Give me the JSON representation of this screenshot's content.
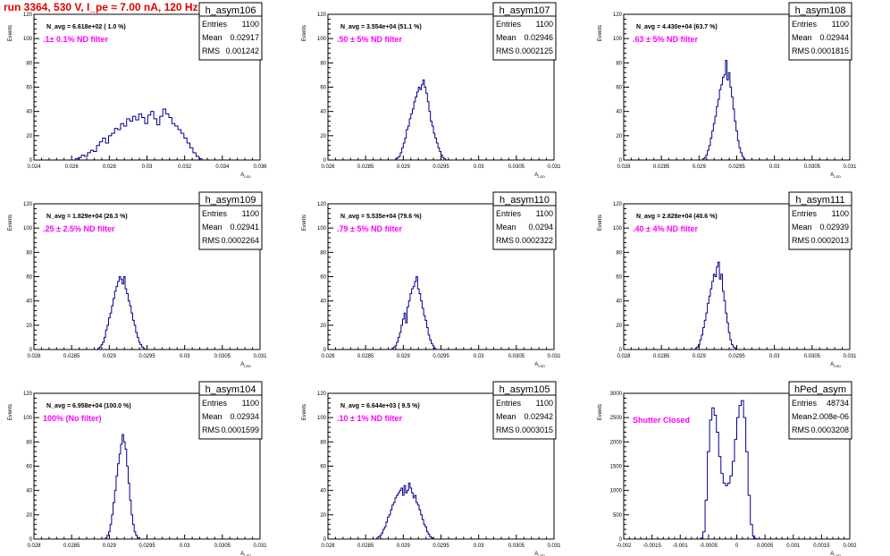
{
  "page": {
    "title": "run 3364,   530 V, I_pe ≈ 7.00 nA, 120 Hz"
  },
  "colors": {
    "title": "#e00000",
    "histogram": "#00008b",
    "filter_label": "#ff00ff"
  },
  "chart_data": [
    {
      "type": "histogram",
      "name": "h_asym106",
      "ylabel": "Events",
      "xlabel": "A_{LED}",
      "navg": "N_avg = 6.618e+02 ( 1.0 %)",
      "filter": ".1± 0.1% ND filter",
      "stats": {
        "Entries": "1100",
        "Mean": "0.02917",
        "RMS": "0.001242"
      },
      "xlim": [
        0.024,
        0.036
      ],
      "ylim": [
        0,
        120
      ],
      "xticks": [
        0.024,
        0.026,
        0.028,
        0.03,
        0.032,
        0.034,
        0.036
      ],
      "xtick_labels": [
        "0.024",
        "0.026",
        "0.028",
        "0.03",
        "0.032",
        "0.034",
        "0.036"
      ],
      "yticks": [
        0,
        20,
        40,
        60,
        80,
        100,
        120
      ],
      "bins": {
        "x0": 0.0262,
        "width": 0.00016,
        "counts": [
          1,
          2,
          4,
          3,
          6,
          8,
          7,
          12,
          15,
          18,
          14,
          20,
          22,
          26,
          25,
          30,
          28,
          34,
          32,
          36,
          33,
          38,
          35,
          30,
          37,
          40,
          34,
          29,
          36,
          42,
          38,
          35,
          30,
          28,
          25,
          22,
          18,
          14,
          10,
          6,
          3,
          1
        ]
      }
    },
    {
      "type": "histogram",
      "name": "h_asym107",
      "ylabel": "Events",
      "xlabel": "A_{LED}",
      "navg": "N_avg = 3.554e+04 (51.1 %)",
      "filter": ".50 ± 5% ND filter",
      "stats": {
        "Entries": "1100",
        "Mean": "0.02946",
        "RMS": "0.0002125"
      },
      "xlim": [
        0.028,
        0.031
      ],
      "ylim": [
        0,
        120
      ],
      "xticks": [
        0.028,
        0.0285,
        0.029,
        0.0295,
        0.03,
        0.0305,
        0.031
      ],
      "xtick_labels": [
        "0.028",
        "0.0285",
        "0.029",
        "0.0295",
        "0.03",
        "0.0305",
        "0.031"
      ],
      "yticks": [
        0,
        20,
        40,
        60,
        80,
        100,
        120
      ],
      "bins": {
        "x0": 0.0289,
        "width": 2e-05,
        "counts": [
          1,
          2,
          3,
          6,
          10,
          14,
          18,
          25,
          28,
          34,
          38,
          42,
          48,
          52,
          56,
          60,
          58,
          62,
          66,
          60,
          55,
          48,
          40,
          32,
          28,
          22,
          18,
          14,
          10,
          7,
          4,
          2,
          1
        ]
      }
    },
    {
      "type": "histogram",
      "name": "h_asym108",
      "ylabel": "Events",
      "xlabel": "A_{LED}",
      "navg": "N_avg = 4.430e+04 (63.7 %)",
      "filter": ".63 ± 5% ND filter",
      "stats": {
        "Entries": "1100",
        "Mean": "0.02944",
        "RMS": "0.0001815"
      },
      "xlim": [
        0.028,
        0.031
      ],
      "ylim": [
        0,
        120
      ],
      "xticks": [
        0.028,
        0.0285,
        0.029,
        0.0295,
        0.03,
        0.0305,
        0.031
      ],
      "xtick_labels": [
        "0.028",
        "0.0285",
        "0.029",
        "0.0295",
        "0.03",
        "0.0305",
        "0.031"
      ],
      "yticks": [
        0,
        20,
        40,
        60,
        80,
        100,
        120
      ],
      "bins": {
        "x0": 0.02905,
        "width": 2e-05,
        "counts": [
          1,
          2,
          4,
          8,
          12,
          18,
          24,
          30,
          36,
          44,
          50,
          58,
          62,
          68,
          70,
          82,
          66,
          72,
          60,
          52,
          42,
          32,
          24,
          16,
          10,
          6,
          3,
          1
        ]
      }
    },
    {
      "type": "histogram",
      "name": "h_asym109",
      "ylabel": "Events",
      "xlabel": "A_{LED}",
      "navg": "N_avg = 1.829e+04 (26.3 %)",
      "filter": ".25 ± 2.5% ND filter",
      "stats": {
        "Entries": "1100",
        "Mean": "0.02941",
        "RMS": "0.0002264"
      },
      "xlim": [
        0.028,
        0.031
      ],
      "ylim": [
        0,
        120
      ],
      "xticks": [
        0.028,
        0.0285,
        0.029,
        0.0295,
        0.03,
        0.0305,
        0.031
      ],
      "xtick_labels": [
        "0.028",
        "0.0285",
        "0.029",
        "0.0295",
        "0.03",
        "0.0305",
        "0.031"
      ],
      "yticks": [
        0,
        20,
        40,
        60,
        80,
        100,
        120
      ],
      "bins": {
        "x0": 0.02885,
        "width": 2e-05,
        "counts": [
          1,
          2,
          4,
          6,
          10,
          16,
          20,
          26,
          30,
          36,
          42,
          48,
          52,
          56,
          60,
          58,
          54,
          60,
          50,
          46,
          40,
          36,
          30,
          24,
          20,
          14,
          10,
          6,
          4,
          2,
          1
        ]
      }
    },
    {
      "type": "histogram",
      "name": "h_asym110",
      "ylabel": "Events",
      "xlabel": "A_{LED}",
      "navg": "N_avg = 5.535e+04 (79.6 %)",
      "filter": ".79 ± 5% ND filter",
      "stats": {
        "Entries": "1100",
        "Mean": "0.0294",
        "RMS": "0.0002322"
      },
      "xlim": [
        0.028,
        0.031
      ],
      "ylim": [
        0,
        120
      ],
      "xticks": [
        0.028,
        0.0285,
        0.029,
        0.0295,
        0.03,
        0.0305,
        0.031
      ],
      "xtick_labels": [
        "0.028",
        "0.0285",
        "0.029",
        "0.0295",
        "0.03",
        "0.0305",
        "0.031"
      ],
      "yticks": [
        0,
        20,
        40,
        60,
        80,
        100,
        120
      ],
      "bins": {
        "x0": 0.02885,
        "width": 2e-05,
        "counts": [
          1,
          2,
          3,
          6,
          10,
          14,
          20,
          25,
          30,
          22,
          35,
          40,
          46,
          50,
          52,
          56,
          60,
          50,
          46,
          40,
          34,
          28,
          24,
          18,
          12,
          8,
          5,
          3,
          1
        ]
      }
    },
    {
      "type": "histogram",
      "name": "h_asym111",
      "ylabel": "Events",
      "xlabel": "A_{LED}",
      "navg": "N_avg = 2.828e+04 (40.6 %)",
      "filter": ".40 ± 4% ND filter",
      "stats": {
        "Entries": "1100",
        "Mean": "0.02939",
        "RMS": "0.0002013"
      },
      "xlim": [
        0.028,
        0.031
      ],
      "ylim": [
        0,
        120
      ],
      "xticks": [
        0.028,
        0.0285,
        0.029,
        0.0295,
        0.03,
        0.0305,
        0.031
      ],
      "xtick_labels": [
        "0.028",
        "0.0285",
        "0.029",
        "0.0295",
        "0.03",
        "0.0305",
        "0.031"
      ],
      "yticks": [
        0,
        20,
        40,
        60,
        80,
        100,
        120
      ],
      "bins": {
        "x0": 0.02895,
        "width": 2e-05,
        "counts": [
          1,
          2,
          4,
          8,
          12,
          18,
          24,
          30,
          38,
          44,
          50,
          56,
          62,
          60,
          68,
          72,
          58,
          62,
          48,
          40,
          30,
          22,
          14,
          8,
          4,
          2,
          1
        ]
      }
    },
    {
      "type": "histogram",
      "name": "h_asym104",
      "ylabel": "Events",
      "xlabel": "A_{LED}",
      "navg": "N_avg = 6.958e+04 (100.0 %)",
      "filter": "100% (No filter)",
      "stats": {
        "Entries": "1100",
        "Mean": "0.02934",
        "RMS": "0.0001599"
      },
      "xlim": [
        0.028,
        0.031
      ],
      "ylim": [
        0,
        120
      ],
      "xticks": [
        0.028,
        0.0285,
        0.029,
        0.0295,
        0.03,
        0.0305,
        0.031
      ],
      "xtick_labels": [
        "0.028",
        "0.0285",
        "0.029",
        "0.0295",
        "0.03",
        "0.0305",
        "0.031"
      ],
      "yticks": [
        0,
        20,
        40,
        60,
        80,
        100,
        120
      ],
      "bins": {
        "x0": 0.02895,
        "width": 2e-05,
        "counts": [
          1,
          3,
          6,
          12,
          20,
          30,
          40,
          52,
          62,
          70,
          78,
          86,
          80,
          74,
          60,
          46,
          32,
          20,
          12,
          6,
          3,
          1
        ]
      }
    },
    {
      "type": "histogram",
      "name": "h_asym105",
      "ylabel": "Events",
      "xlabel": "A_{LED}",
      "navg": "N_avg = 6.644e+03 ( 9.5 %)",
      "filter": ".10 ± 1% ND filter",
      "stats": {
        "Entries": "1100",
        "Mean": "0.02942",
        "RMS": "0.0003015"
      },
      "xlim": [
        0.028,
        0.031
      ],
      "ylim": [
        0,
        120
      ],
      "xticks": [
        0.028,
        0.0285,
        0.029,
        0.0295,
        0.03,
        0.0305,
        0.031
      ],
      "xtick_labels": [
        "0.028",
        "0.0285",
        "0.029",
        "0.0295",
        "0.03",
        "0.0305",
        "0.031"
      ],
      "yticks": [
        0,
        20,
        40,
        60,
        80,
        100,
        120
      ],
      "bins": {
        "x0": 0.02865,
        "width": 2e-05,
        "counts": [
          1,
          2,
          3,
          5,
          8,
          10,
          14,
          18,
          20,
          24,
          28,
          30,
          34,
          36,
          38,
          40,
          42,
          36,
          44,
          38,
          40,
          46,
          42,
          38,
          34,
          36,
          30,
          28,
          24,
          20,
          16,
          12,
          10,
          6,
          4,
          2,
          1
        ]
      }
    },
    {
      "type": "histogram",
      "name": "hPed_asym",
      "ylabel": "Events",
      "xlabel": "A_{LED}",
      "navg": "",
      "filter": "Shutter Closed",
      "stats": {
        "Entries": "48734",
        "Mean": "-2.008e-06",
        "RMS": "0.0003208"
      },
      "xlim": [
        -0.002,
        0.002
      ],
      "ylim": [
        0,
        3000
      ],
      "xticks": [
        -0.002,
        -0.0015,
        -0.001,
        -0.0005,
        0,
        0.0005,
        0.001,
        0.0015,
        0.002
      ],
      "xtick_labels": [
        "-0.002",
        "-0.0015",
        "-0.001",
        "-0.0005",
        "0",
        "0.0005",
        "0.001",
        "0.0015",
        "0.002"
      ],
      "yticks": [
        0,
        500,
        1000,
        1500,
        2000,
        2500,
        3000
      ],
      "bins": {
        "x0": -0.00064,
        "width": 4e-05,
        "counts": [
          20,
          150,
          800,
          1800,
          2450,
          2700,
          2550,
          2200,
          1700,
          1350,
          1150,
          1100,
          1150,
          1300,
          1600,
          2050,
          2500,
          2750,
          2850,
          2500,
          1800,
          900,
          300,
          60,
          10
        ]
      }
    }
  ]
}
